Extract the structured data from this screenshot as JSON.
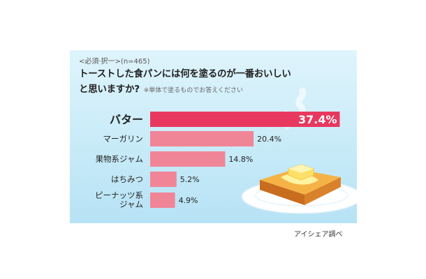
{
  "header": {
    "subtitle": "<必須·択一>(n=465)",
    "question_line1": "トーストした食パンには何を塗るのが一番おいしい",
    "question_line2": "と思いますか?",
    "note": "※単体で塗るものでお答えください"
  },
  "credit": "アイシェア調べ",
  "colors": {
    "highlight": "#e8385f",
    "bar": "#f08597",
    "background": "#c8ebf8"
  },
  "chart_data": {
    "type": "bar",
    "orientation": "horizontal",
    "categories": [
      "バター",
      "マーガリン",
      "果物系ジャム",
      "はちみつ",
      "ピーナッツ系ジャム"
    ],
    "category_lines": [
      [
        "バター"
      ],
      [
        "マーガリン"
      ],
      [
        "果物系ジャム"
      ],
      [
        "はちみつ"
      ],
      [
        "ピーナッツ系",
        "ジャム"
      ]
    ],
    "values": [
      37.4,
      20.4,
      14.8,
      5.2,
      4.9
    ],
    "value_labels": [
      "37.4%",
      "20.4%",
      "14.8%",
      "5.2%",
      "4.9%"
    ],
    "unit": "%",
    "highlight_index": 0,
    "grid": false,
    "legend": "none"
  }
}
